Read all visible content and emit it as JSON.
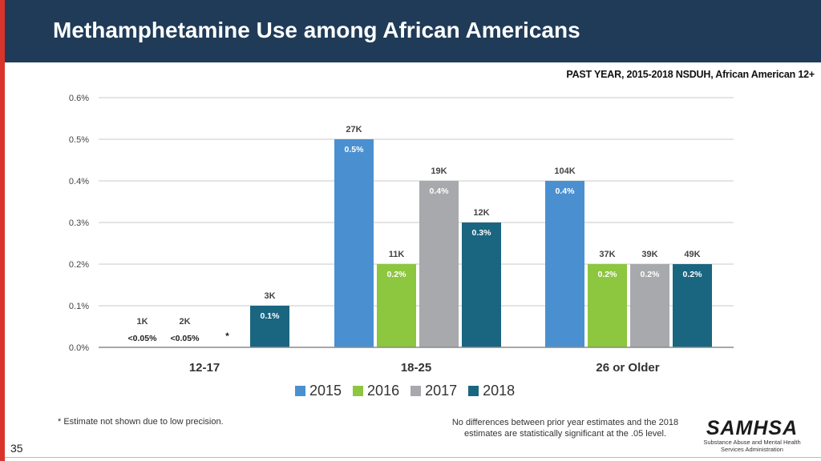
{
  "slide": {
    "title": "Methamphetamine Use among African Americans",
    "subtitle": "PAST YEAR, 2015-2018  NSDUH, African American 12+",
    "footnote_left": "* Estimate not shown due to low precision.",
    "footnote_right_line1": "No differences between prior year estimates and the 2018",
    "footnote_right_line2": "estimates are statistically significant at the .05 level.",
    "page_number": "35",
    "logo_text": "SAMHSA",
    "logo_sub_line1": "Substance Abuse and Mental Health",
    "logo_sub_line2": "Services Administration"
  },
  "colors": {
    "header": "#1f3b57",
    "stripe": "#d9342b",
    "gridline": "#c8c8c8",
    "axis": "#8a8a8a"
  },
  "chart_data": {
    "type": "bar",
    "title": "Methamphetamine Use among African Americans",
    "xlabel": "",
    "ylabel": "",
    "ylim": [
      0,
      0.6
    ],
    "yticks": [
      "0.0%",
      "0.1%",
      "0.2%",
      "0.3%",
      "0.4%",
      "0.5%",
      "0.6%"
    ],
    "ytick_values": [
      0,
      0.1,
      0.2,
      0.3,
      0.4,
      0.5,
      0.6
    ],
    "grid": true,
    "legend_position": "bottom",
    "categories": [
      "12-17",
      "18-25",
      "26 or Older"
    ],
    "series": [
      {
        "name": "2015",
        "color": "#4a90d0",
        "values": [
          0.02,
          0.5,
          0.4
        ],
        "value_labels": [
          "<0.05%",
          "0.5%",
          "0.4%"
        ],
        "count_labels": [
          "1K",
          "27K",
          "104K"
        ]
      },
      {
        "name": "2016",
        "color": "#8dc63f",
        "values": [
          0.02,
          0.2,
          0.2
        ],
        "value_labels": [
          "<0.05%",
          "0.2%",
          "0.2%"
        ],
        "count_labels": [
          "2K",
          "11K",
          "37K"
        ]
      },
      {
        "name": "2017",
        "color": "#a7a9ac",
        "values": [
          null,
          0.4,
          0.2
        ],
        "value_labels": [
          "*",
          "0.4%",
          "0.2%"
        ],
        "count_labels": [
          "",
          "19K",
          "39K"
        ]
      },
      {
        "name": "2018",
        "color": "#1a6680",
        "values": [
          0.1,
          0.3,
          0.2
        ],
        "value_labels": [
          "0.1%",
          "0.3%",
          "0.2%"
        ],
        "count_labels": [
          "3K",
          "12K",
          "49K"
        ]
      }
    ]
  }
}
